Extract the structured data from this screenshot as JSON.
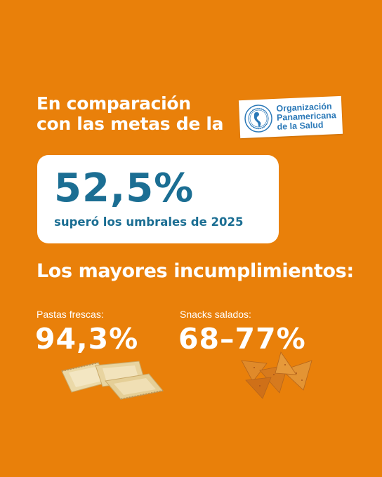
{
  "intro": {
    "line1": "En comparación",
    "line2": "con las metas de la"
  },
  "logo": {
    "line1": "Organización",
    "line2": "Panamericana",
    "line3": "de la Salud",
    "icon": "ops-globe-logo",
    "color": "#2B79B8"
  },
  "highlight": {
    "value": "52,5%",
    "caption": "superó los umbrales de 2025",
    "color": "#1B6E93"
  },
  "section": {
    "title": "Los mayores incumplimientos:"
  },
  "items": [
    {
      "label": "Pastas frescas:",
      "value": "94,3%",
      "illustration": "ravioli-image"
    },
    {
      "label": "Snacks salados:",
      "value": "68–77%",
      "illustration": "nachos-image"
    }
  ],
  "colors": {
    "background": "#E9800A",
    "text": "#FFFFFF"
  }
}
